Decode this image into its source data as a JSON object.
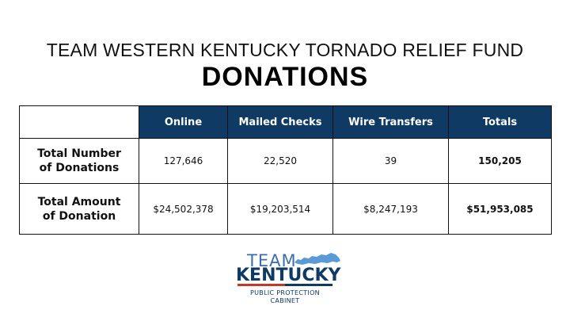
{
  "header": {
    "subtitle": "TEAM WESTERN KENTUCKY TORNADO RELIEF FUND",
    "title": "DONATIONS"
  },
  "table": {
    "columns": [
      "Online",
      "Mailed Checks",
      "Wire Transfers",
      "Totals"
    ],
    "rows": [
      {
        "label_line1": "Total Number",
        "label_line2": "of Donations",
        "values": [
          "127,646",
          "22,520",
          "39"
        ],
        "total": "150,205"
      },
      {
        "label_line1": "Total Amount",
        "label_line2": "of Donation",
        "values": [
          "$24,502,378",
          "$19,203,514",
          "$8,247,193"
        ],
        "total": "$51,953,085"
      }
    ]
  },
  "logo": {
    "team": "TEAM",
    "kentucky": "KENTUCKY",
    "agency_line1": "PUBLIC PROTECTION",
    "agency_line2": "CABINET",
    "colors": {
      "navy": "#0e3a63",
      "light_blue": "#3d6ea8",
      "red": "#c0392b",
      "state_blue": "#5b9bd5"
    }
  },
  "colors": {
    "header_fill": "#0e3a63",
    "header_text": "#ffffff"
  }
}
